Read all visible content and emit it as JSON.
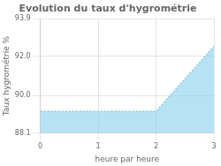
{
  "chart_data": {
    "type": "area",
    "title": "Evolution du taux d'hygrométrie",
    "xlabel": "heure par heure",
    "ylabel": "Taux hygrométrie %",
    "x": [
      0,
      2,
      3
    ],
    "values": [
      89.2,
      89.2,
      92.5
    ],
    "color": "#87CEEB",
    "line_style": "dotted",
    "xlim": [
      0,
      3
    ],
    "ylim": [
      88.1,
      93.9
    ],
    "xticks": [
      0,
      1,
      2,
      3
    ],
    "yticks": [
      88.1,
      {
        "value": 90.0,
        "label": "90.0"
      },
      {
        "value": 92.0,
        "label": "92.0"
      },
      93.9
    ],
    "grid": true
  }
}
